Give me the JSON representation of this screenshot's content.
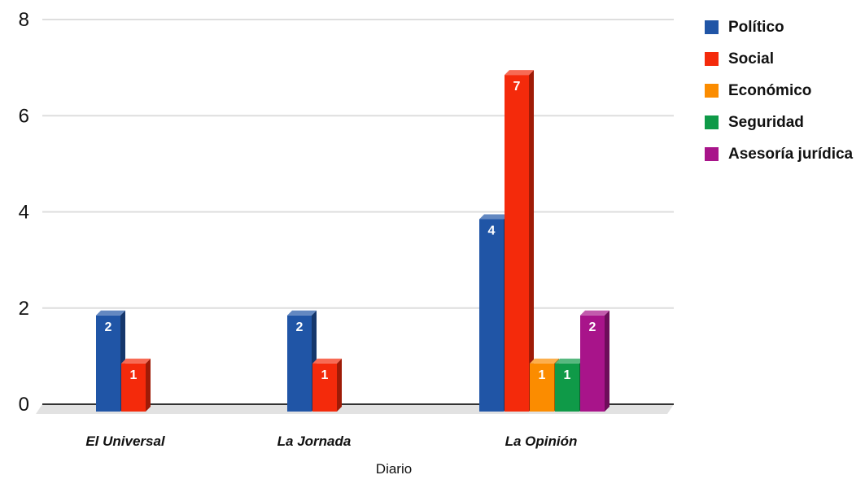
{
  "chart_data": {
    "type": "bar",
    "xlabel": "Diario",
    "ylabel": "",
    "ylim": [
      0,
      8
    ],
    "yticks": [
      0,
      2,
      4,
      6,
      8
    ],
    "grid": true,
    "legend_position": "right",
    "categories": [
      "El Universal",
      "La Jornada",
      "La Opinión"
    ],
    "series": [
      {
        "name": "Político",
        "color": "#2055a6",
        "values": [
          2,
          2,
          4
        ]
      },
      {
        "name": "Social",
        "color": "#f42a0b",
        "values": [
          1,
          1,
          7
        ]
      },
      {
        "name": "Económico",
        "color": "#fb8c00",
        "values": [
          null,
          null,
          1
        ]
      },
      {
        "name": "Seguridad",
        "color": "#0f9a48",
        "values": [
          null,
          null,
          1
        ]
      },
      {
        "name": "Asesoría jurídica",
        "color": "#a8148a",
        "values": [
          null,
          null,
          2
        ]
      }
    ]
  }
}
